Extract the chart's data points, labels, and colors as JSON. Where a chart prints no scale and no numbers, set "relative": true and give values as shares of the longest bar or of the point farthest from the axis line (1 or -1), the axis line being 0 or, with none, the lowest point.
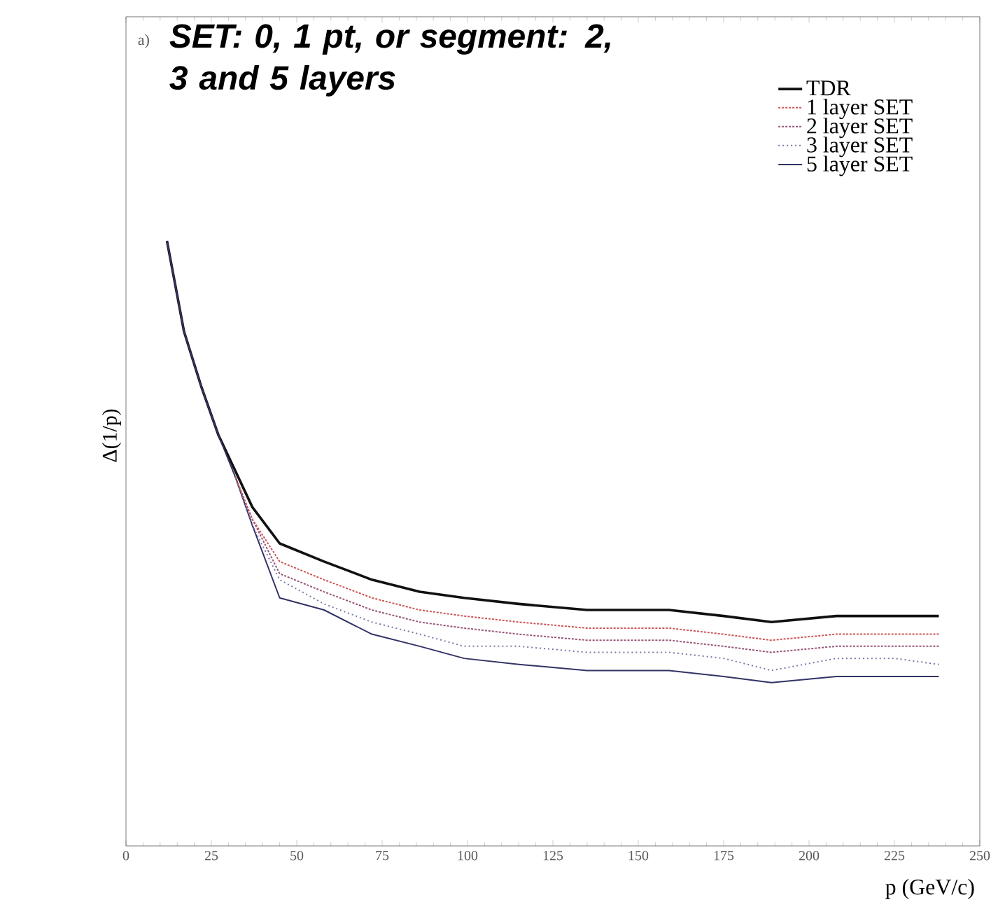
{
  "chart_data": {
    "type": "line",
    "title": "SET: 0, 1 pt, or segment: 2, 3 and 5 layers",
    "xlabel": "p (GeV/c)",
    "ylabel": "Δ(1/p)",
    "relative": true,
    "x": [
      12,
      17,
      22,
      27,
      32,
      37,
      45,
      58,
      72,
      86,
      99,
      115,
      135,
      159,
      175,
      189,
      208,
      225,
      238
    ],
    "xlim": [
      0,
      250
    ],
    "xticks": [
      0,
      25,
      50,
      75,
      100,
      125,
      150,
      175,
      200,
      225,
      250
    ],
    "legend": "top right",
    "annotations": [
      "a)"
    ],
    "series": [
      {
        "name": "TDR",
        "color": "#111111",
        "line_style": "solid",
        "values": [
          1.0,
          0.85,
          0.76,
          0.68,
          0.62,
          0.56,
          0.5,
          0.47,
          0.44,
          0.42,
          0.41,
          0.4,
          0.39,
          0.39,
          0.38,
          0.37,
          0.38,
          0.38,
          0.38
        ]
      },
      {
        "name": "1 layer SET",
        "color": "#cc5555",
        "line_style": "dashed",
        "values": [
          null,
          null,
          null,
          null,
          0.61,
          0.54,
          0.47,
          0.44,
          0.41,
          0.39,
          0.38,
          0.37,
          0.36,
          0.36,
          0.35,
          0.34,
          0.35,
          0.35,
          0.35
        ]
      },
      {
        "name": "2 layer SET",
        "color": "#995577",
        "line_style": "dashed",
        "values": [
          null,
          null,
          null,
          null,
          0.61,
          0.54,
          0.45,
          0.42,
          0.39,
          0.37,
          0.36,
          0.35,
          0.34,
          0.34,
          0.33,
          0.32,
          0.33,
          0.33,
          0.33
        ]
      },
      {
        "name": "3 layer SET",
        "color": "#7777aa",
        "line_style": "dotted",
        "values": [
          null,
          null,
          null,
          null,
          0.61,
          0.53,
          0.44,
          0.4,
          0.37,
          0.35,
          0.33,
          0.33,
          0.32,
          0.32,
          0.31,
          0.29,
          0.31,
          0.31,
          0.3
        ]
      },
      {
        "name": "5 layer SET",
        "color": "#333366",
        "line_style": "solid",
        "values": [
          1.0,
          0.85,
          0.76,
          0.68,
          0.61,
          0.53,
          0.41,
          0.39,
          0.35,
          0.33,
          0.31,
          0.3,
          0.29,
          0.29,
          0.28,
          0.27,
          0.28,
          0.28,
          0.28
        ]
      }
    ]
  }
}
